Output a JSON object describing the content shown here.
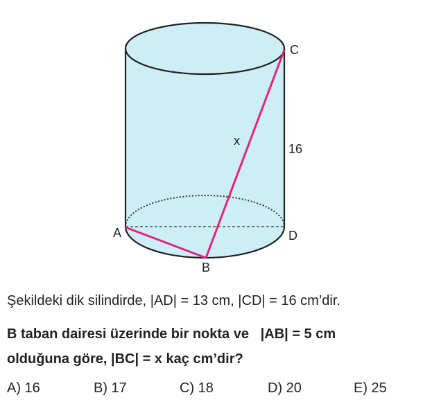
{
  "figure": {
    "points": {
      "A": "A",
      "B": "B",
      "C": "C",
      "D": "D"
    },
    "labels": {
      "unknown": "x",
      "height": "16"
    },
    "colors": {
      "fill": "#cdeef6",
      "segment": "#e3237c",
      "outline": "#222222"
    }
  },
  "question": {
    "statement": "Şekildeki dik silindirde, |AD| = 13 cm, |CD| = 16 cm’dir.",
    "line1": "B taban dairesi üzerinde bir nokta ve   |AB| = 5 cm",
    "line2": "olduğuna göre, |BC| = x kaç cm’dir?"
  },
  "options": [
    "A) 16",
    "B) 17",
    "C) 18",
    "D) 20",
    "E) 25"
  ]
}
